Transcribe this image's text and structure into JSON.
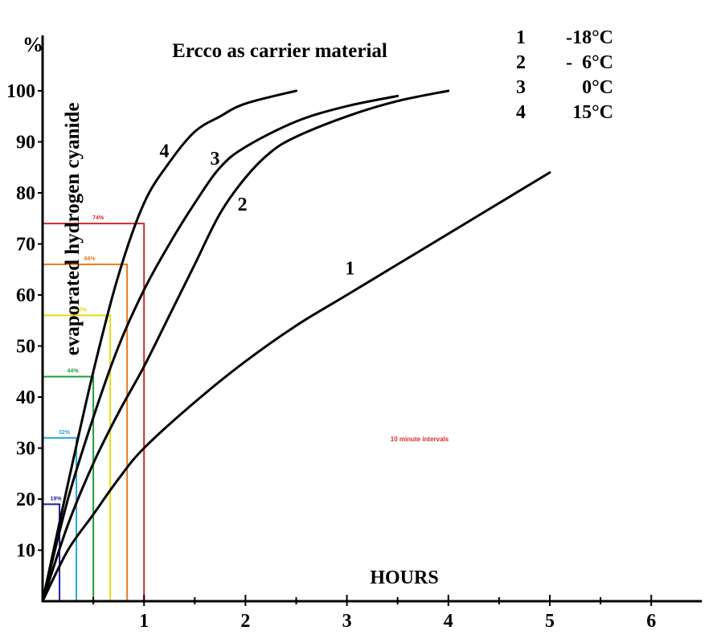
{
  "chart_data": {
    "type": "line",
    "title": "Ercco as carrier material",
    "xlabel": "HOURS",
    "ylabel": "evaporated hydrogen cyanide",
    "y_unit": "%",
    "x_ticks": [
      "1",
      "2",
      "3",
      "4",
      "5",
      "6"
    ],
    "y_ticks": [
      "10",
      "20",
      "30",
      "40",
      "50",
      "60",
      "70",
      "80",
      "90",
      "100"
    ],
    "xlim": [
      0,
      6.5
    ],
    "ylim": [
      0,
      100
    ],
    "legend": [
      {
        "num": "1",
        "temp": "-18°C"
      },
      {
        "num": "2",
        "temp": "-  6°C"
      },
      {
        "num": "3",
        "temp": "0°C"
      },
      {
        "num": "4",
        "temp": "15°C"
      }
    ],
    "series": [
      {
        "label": "1",
        "points": [
          [
            0,
            0
          ],
          [
            0.25,
            10
          ],
          [
            0.5,
            17
          ],
          [
            0.75,
            24
          ],
          [
            1,
            30
          ],
          [
            1.5,
            39
          ],
          [
            2,
            47
          ],
          [
            2.5,
            54
          ],
          [
            3,
            60
          ],
          [
            3.5,
            66
          ],
          [
            4,
            72
          ],
          [
            4.5,
            78
          ],
          [
            5,
            84
          ]
        ]
      },
      {
        "label": "2",
        "points": [
          [
            0,
            0
          ],
          [
            0.25,
            15
          ],
          [
            0.5,
            27
          ],
          [
            0.75,
            37
          ],
          [
            1,
            46
          ],
          [
            1.25,
            56
          ],
          [
            1.5,
            66
          ],
          [
            1.75,
            76
          ],
          [
            2,
            83
          ],
          [
            2.25,
            88
          ],
          [
            2.5,
            91
          ],
          [
            3,
            95
          ],
          [
            3.5,
            98
          ],
          [
            4,
            100
          ]
        ]
      },
      {
        "label": "3",
        "points": [
          [
            0,
            0
          ],
          [
            0.25,
            20
          ],
          [
            0.5,
            36
          ],
          [
            0.75,
            50
          ],
          [
            1,
            61
          ],
          [
            1.25,
            70
          ],
          [
            1.5,
            78
          ],
          [
            1.75,
            85
          ],
          [
            2,
            89
          ],
          [
            2.5,
            94
          ],
          [
            3,
            97
          ],
          [
            3.5,
            99
          ]
        ]
      },
      {
        "label": "4",
        "points": [
          [
            0,
            0
          ],
          [
            0.25,
            23
          ],
          [
            0.5,
            45
          ],
          [
            0.75,
            64
          ],
          [
            1,
            78
          ],
          [
            1.25,
            86
          ],
          [
            1.5,
            92
          ],
          [
            1.75,
            95
          ],
          [
            2,
            97.5
          ],
          [
            2.5,
            100
          ]
        ]
      }
    ],
    "curve_labels": [
      {
        "series": "1",
        "text": "1",
        "x": 3.03,
        "y": 64
      },
      {
        "series": "2",
        "text": "2",
        "x": 1.97,
        "y": 76.5
      },
      {
        "series": "3",
        "text": "3",
        "x": 1.7,
        "y": 85.5
      },
      {
        "series": "4",
        "text": "4",
        "x": 1.2,
        "y": 87
      }
    ],
    "annotation": "10 minute intervals",
    "interval_boxes": [
      {
        "x_end": 0.1667,
        "y_top": 19,
        "label": "19%",
        "color": "#1f1f9e"
      },
      {
        "x_end": 0.3333,
        "y_top": 32,
        "label": "32%",
        "color": "#2aa2d8"
      },
      {
        "x_end": 0.5,
        "y_top": 44,
        "label": "44%",
        "color": "#1f9e3a"
      },
      {
        "x_end": 0.6667,
        "y_top": 56,
        "label": "56%",
        "color": "#e8dc10"
      },
      {
        "x_end": 0.8333,
        "y_top": 66,
        "label": "66%",
        "color": "#e87a20"
      },
      {
        "x_end": 1.0,
        "y_top": 74,
        "label": "74%",
        "color": "#d42a2a"
      }
    ]
  }
}
